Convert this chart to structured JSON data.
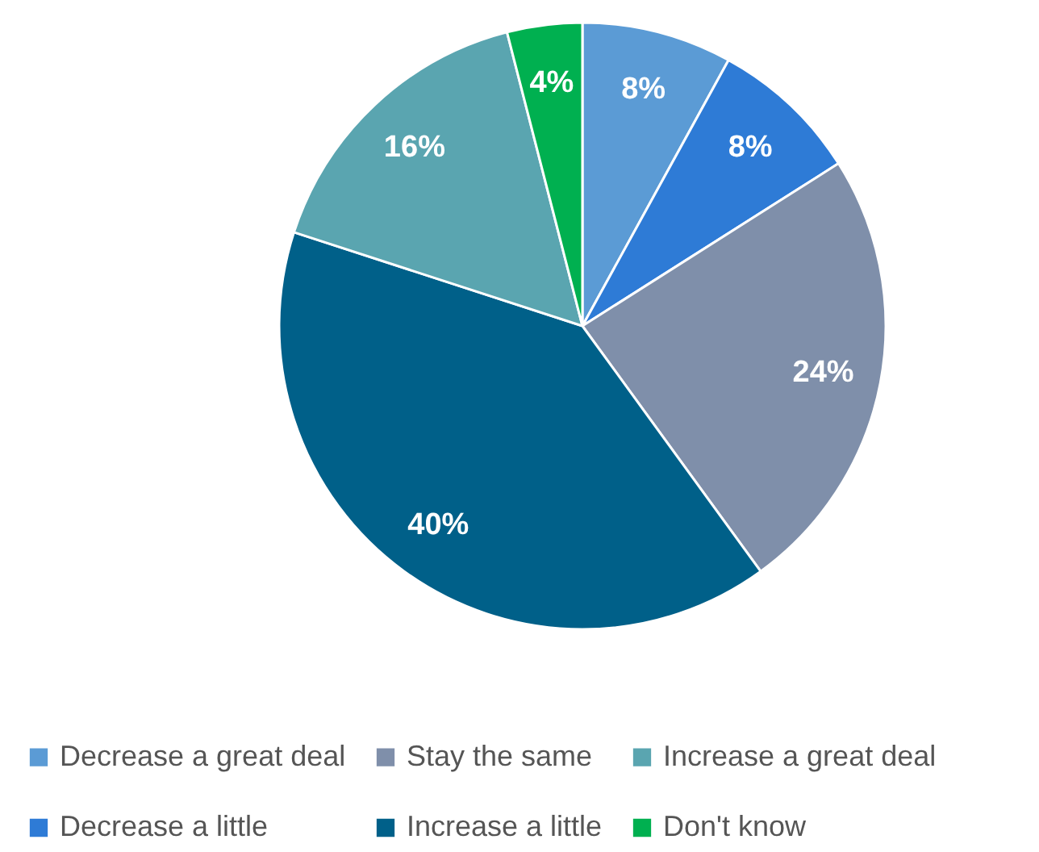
{
  "chart_data": {
    "type": "pie",
    "categories": [
      "Decrease a great deal",
      "Decrease a little",
      "Stay the same",
      "Increase a little",
      "Increase a great deal",
      "Don't know"
    ],
    "values": [
      8,
      8,
      24,
      40,
      16,
      4
    ],
    "colors": [
      "#5b9bd5",
      "#2e7bd6",
      "#7f8faa",
      "#006089",
      "#5aa5b0",
      "#00b050"
    ],
    "value_labels": [
      "8%",
      "8%",
      "24%",
      "40%",
      "16%",
      "4%"
    ],
    "legend": "bottom"
  }
}
